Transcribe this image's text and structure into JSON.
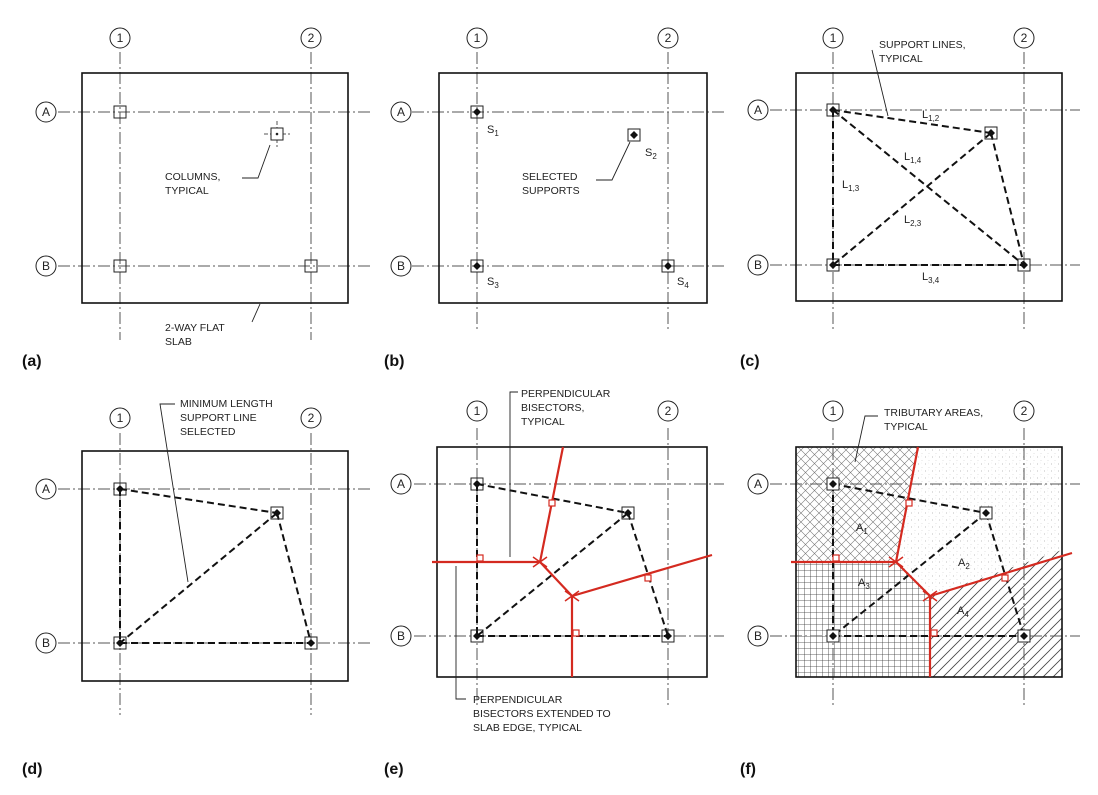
{
  "panels": {
    "a": {
      "label": "(a)",
      "grid": {
        "col1": "1",
        "col2": "2",
        "rowA": "A",
        "rowB": "B"
      },
      "notes": {
        "columns": [
          "COLUMNS,",
          "TYPICAL"
        ],
        "slab": [
          "2-WAY FLAT",
          "SLAB"
        ]
      }
    },
    "b": {
      "label": "(b)",
      "grid": {
        "col1": "1",
        "col2": "2",
        "rowA": "A",
        "rowB": "B"
      },
      "notes": {
        "selected": [
          "SELECTED",
          "SUPPORTS"
        ]
      },
      "supports": [
        {
          "base": "S",
          "sub": "1"
        },
        {
          "base": "S",
          "sub": "2"
        },
        {
          "base": "S",
          "sub": "3"
        },
        {
          "base": "S",
          "sub": "4"
        }
      ]
    },
    "c": {
      "label": "(c)",
      "grid": {
        "col1": "1",
        "col2": "2",
        "rowA": "A",
        "rowB": "B"
      },
      "notes": {
        "support_lines": [
          "SUPPORT LINES,",
          "TYPICAL"
        ]
      },
      "lines": [
        {
          "base": "L",
          "sub": "1,2"
        },
        {
          "base": "L",
          "sub": "1,4"
        },
        {
          "base": "L",
          "sub": "1,3"
        },
        {
          "base": "L",
          "sub": "2,3"
        },
        {
          "base": "L",
          "sub": "3,4"
        }
      ]
    },
    "d": {
      "label": "(d)",
      "grid": {
        "col1": "1",
        "col2": "2",
        "rowA": "A",
        "rowB": "B"
      },
      "notes": {
        "min_length": [
          "MINIMUM LENGTH",
          "SUPPORT LINE",
          "SELECTED"
        ]
      }
    },
    "e": {
      "label": "(e)",
      "grid": {
        "col1": "1",
        "col2": "2",
        "rowA": "A",
        "rowB": "B"
      },
      "notes": {
        "bisectors": [
          "PERPENDICULAR",
          "BISECTORS,",
          "TYPICAL"
        ],
        "extended": [
          "PERPENDICULAR",
          "BISECTORS EXTENDED TO",
          "SLAB EDGE, TYPICAL"
        ]
      },
      "bisector_color": "#d42a20"
    },
    "f": {
      "label": "(f)",
      "grid": {
        "col1": "1",
        "col2": "2",
        "rowA": "A",
        "rowB": "B"
      },
      "notes": {
        "tributary": [
          "TRIBUTARY AREAS,",
          "TYPICAL"
        ]
      },
      "areas": [
        {
          "base": "A",
          "sub": "1"
        },
        {
          "base": "A",
          "sub": "2"
        },
        {
          "base": "A",
          "sub": "3"
        },
        {
          "base": "A",
          "sub": "4"
        }
      ]
    }
  }
}
